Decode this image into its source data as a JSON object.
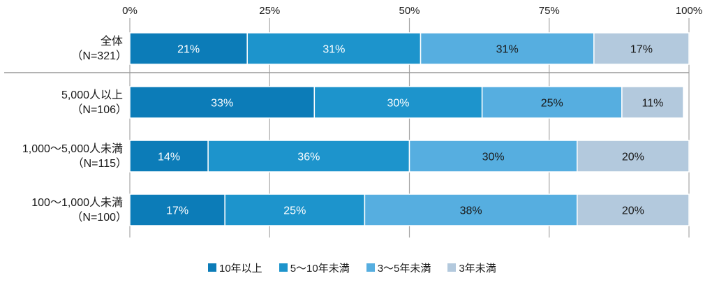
{
  "chart_data": {
    "type": "bar",
    "orientation": "horizontal",
    "stacked": true,
    "xlim": [
      0,
      100
    ],
    "x_ticks": [
      "0%",
      "25%",
      "50%",
      "75%",
      "100%"
    ],
    "categories": [
      [
        "全体",
        "（N=321）"
      ],
      [
        "5,000人以上",
        "（N=106）"
      ],
      [
        "1,000～5,000人未満",
        "（N=115）"
      ],
      [
        "100～1,000人未満",
        "（N=100）"
      ]
    ],
    "series": [
      {
        "name": "10年以上",
        "color": "#0c7cb8",
        "values": [
          21,
          33,
          14,
          17
        ]
      },
      {
        "name": "5～10年未満",
        "color": "#1d94cc",
        "values": [
          31,
          30,
          36,
          25
        ]
      },
      {
        "name": "3～5年未満",
        "color": "#56aee0",
        "values": [
          31,
          25,
          30,
          38
        ]
      },
      {
        "name": "3年未満",
        "color": "#b3c9dd",
        "values": [
          17,
          11,
          20,
          20
        ]
      }
    ],
    "data_labels": [
      [
        "21%",
        "31%",
        "31%",
        "17%"
      ],
      [
        "33%",
        "30%",
        "25%",
        "11%"
      ],
      [
        "14%",
        "36%",
        "30%",
        "20%"
      ],
      [
        "17%",
        "25%",
        "38%",
        "20%"
      ]
    ],
    "grid": true,
    "legend_position": "bottom"
  }
}
